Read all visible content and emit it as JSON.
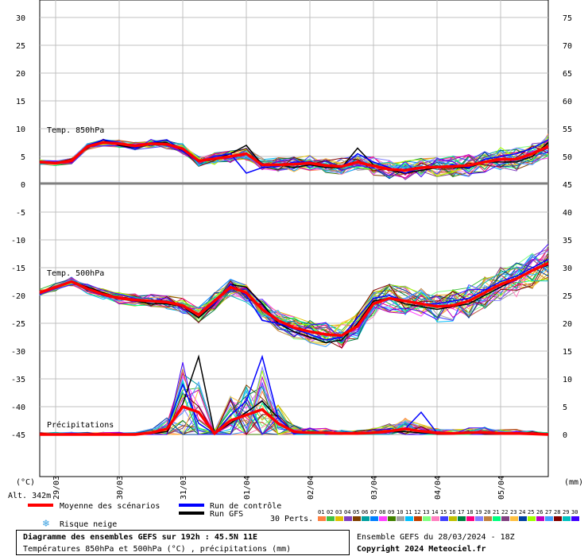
{
  "colors": {
    "mean": "#ff0000",
    "control": "#0000ff",
    "gfs": "#000000",
    "grid": "#c0c0c0",
    "members": [
      "#ff8040",
      "#40c040",
      "#e0c000",
      "#8040c0",
      "#804000",
      "#00a0a0",
      "#0080ff",
      "#ff40ff",
      "#408000",
      "#a0a0a0",
      "#00c0ff",
      "#c04000",
      "#80ff80",
      "#ff80c0",
      "#4040ff",
      "#c0c000",
      "#008040",
      "#ff0080",
      "#8080ff",
      "#c08040",
      "#00ff80",
      "#804080",
      "#ffc040",
      "#0040a0",
      "#a0ff00",
      "#c000c0",
      "#40a0ff",
      "#800000",
      "#00c0c0",
      "#4000ff"
    ]
  },
  "chart_data": {
    "type": "line",
    "title": "Diagramme des ensembles GEFS sur 192h : 45.5N 11E",
    "subtitle": "Températures 850hPa et 500hPa (°C) , précipitations (mm)",
    "run_info": "Ensemble GEFS du 28/03/2024 - 18Z",
    "copyright": "Copyright 2024 Meteociel.fr",
    "altitude": "Alt. 342m",
    "left_axis": {
      "unit": "(°C)",
      "range": [
        -50,
        33
      ],
      "ticks_upper": [
        0,
        5,
        10,
        15,
        20,
        25,
        30
      ],
      "ticks_lower": [
        -45,
        -40,
        -35,
        -30,
        -25,
        -20,
        -15,
        -10,
        -5,
        0
      ]
    },
    "right_axis": {
      "unit": "(mm)",
      "ticks": [
        0,
        5,
        10,
        15,
        20,
        25,
        30,
        35,
        40,
        45,
        50,
        55,
        60,
        65,
        70,
        75
      ]
    },
    "x_range_hours": [
      0,
      192
    ],
    "date_ticks": [
      {
        "label": "29/03",
        "hour": 6
      },
      {
        "label": "30/03",
        "hour": 30
      },
      {
        "label": "31/03",
        "hour": 54
      },
      {
        "label": "01/04",
        "hour": 78
      },
      {
        "label": "02/04",
        "hour": 102
      },
      {
        "label": "03/04",
        "hour": 126
      },
      {
        "label": "04/04",
        "hour": 150
      },
      {
        "label": "05/04",
        "hour": 174
      }
    ],
    "panel_labels": [
      "Temp. 850hPa",
      "Temp. 500hPa",
      "Précipitations"
    ],
    "legend": {
      "mean": "Moyenne des scénarios",
      "control": "Run de contrôle",
      "gfs": "Run GFS",
      "snow": "Risque neige",
      "perts_label": "30 Perts.",
      "perts_numbers": [
        "01",
        "02",
        "03",
        "04",
        "05",
        "06",
        "07",
        "08",
        "09",
        "10",
        "11",
        "12",
        "13",
        "14",
        "15",
        "16",
        "17",
        "18",
        "19",
        "20",
        "21",
        "22",
        "23",
        "24",
        "25",
        "26",
        "27",
        "28",
        "29",
        "30"
      ]
    },
    "series": {
      "t850": {
        "hours": [
          0,
          6,
          12,
          18,
          24,
          30,
          36,
          42,
          48,
          54,
          60,
          66,
          72,
          78,
          84,
          90,
          96,
          102,
          108,
          114,
          120,
          126,
          132,
          138,
          144,
          150,
          156,
          162,
          168,
          174,
          180,
          186,
          192
        ],
        "mean": [
          4.0,
          3.8,
          4.2,
          6.8,
          7.5,
          7.3,
          6.9,
          7.3,
          7.2,
          6.4,
          4.2,
          4.6,
          5.0,
          5.5,
          3.5,
          3.5,
          3.6,
          3.8,
          3.4,
          3.2,
          4.0,
          3.3,
          2.7,
          2.5,
          3.0,
          3.1,
          3.2,
          3.4,
          4.0,
          4.5,
          4.5,
          5.5,
          6.8
        ],
        "control": [
          4.0,
          3.9,
          4.0,
          7.0,
          8.0,
          7.5,
          6.5,
          7.5,
          8.0,
          6.0,
          4.0,
          5.0,
          5.5,
          2.0,
          3.0,
          3.2,
          4.0,
          4.0,
          3.5,
          3.0,
          5.5,
          4.0,
          3.0,
          2.0,
          3.0,
          3.0,
          3.5,
          3.0,
          4.5,
          5.0,
          5.5,
          6.5,
          8.0
        ],
        "gfs": [
          4.0,
          3.7,
          4.2,
          6.8,
          8.0,
          7.0,
          6.5,
          7.5,
          7.5,
          6.0,
          4.2,
          4.5,
          5.5,
          7.0,
          3.5,
          3.5,
          3.0,
          3.5,
          3.0,
          3.0,
          6.5,
          3.5,
          2.5,
          2.0,
          2.5,
          3.0,
          3.0,
          3.0,
          4.0,
          4.0,
          4.0,
          5.0,
          7.5
        ]
      },
      "t500": {
        "hours": [
          0,
          6,
          12,
          18,
          24,
          30,
          36,
          42,
          48,
          54,
          60,
          66,
          72,
          78,
          84,
          90,
          96,
          102,
          108,
          114,
          120,
          126,
          132,
          138,
          144,
          150,
          156,
          162,
          168,
          174,
          180,
          186,
          192
        ],
        "mean": [
          -19.5,
          -18.5,
          -17.5,
          -18.8,
          -19.8,
          -20.5,
          -20.8,
          -21.0,
          -21.2,
          -21.8,
          -23.5,
          -21.0,
          -18.5,
          -19.5,
          -22.5,
          -24.5,
          -25.8,
          -26.5,
          -27.0,
          -27.2,
          -25.5,
          -21.5,
          -20.5,
          -21.0,
          -21.5,
          -22.0,
          -21.8,
          -21.0,
          -19.5,
          -18.0,
          -17.0,
          -15.5,
          -14.2
        ],
        "control": [
          -19.5,
          -18.5,
          -17.5,
          -19.0,
          -20.0,
          -20.5,
          -21.0,
          -21.0,
          -21.0,
          -22.0,
          -23.5,
          -21.5,
          -18.0,
          -20.0,
          -24.5,
          -25.0,
          -26.0,
          -27.0,
          -28.0,
          -27.5,
          -24.0,
          -20.5,
          -20.0,
          -21.0,
          -21.5,
          -21.5,
          -21.0,
          -20.5,
          -19.0,
          -17.5,
          -16.5,
          -15.0,
          -13.5
        ],
        "gfs": [
          -19.5,
          -18.5,
          -17.5,
          -18.5,
          -19.5,
          -20.5,
          -21.0,
          -21.5,
          -21.5,
          -22.0,
          -24.0,
          -21.5,
          -18.0,
          -18.5,
          -21.5,
          -25.0,
          -26.5,
          -27.5,
          -28.5,
          -28.0,
          -25.0,
          -21.0,
          -20.5,
          -21.5,
          -22.0,
          -22.5,
          -22.0,
          -21.5,
          -20.0,
          -18.5,
          -17.0,
          -15.5,
          -14.5
        ]
      },
      "precip_mm": {
        "hours": [
          0,
          6,
          12,
          18,
          24,
          30,
          36,
          42,
          48,
          54,
          60,
          66,
          72,
          78,
          84,
          90,
          96,
          102,
          108,
          114,
          120,
          126,
          132,
          138,
          144,
          150,
          156,
          162,
          168,
          174,
          180,
          186,
          192
        ],
        "mean": [
          0,
          0,
          0,
          0,
          0,
          0,
          0,
          0.3,
          1.0,
          5.0,
          4.0,
          0.2,
          2.5,
          3.5,
          4.5,
          2.0,
          0.5,
          0.3,
          0.3,
          0.2,
          0.2,
          0.3,
          0.6,
          1.0,
          0.6,
          0.3,
          0.2,
          0.3,
          0.4,
          0.2,
          0.2,
          0.1,
          0
        ],
        "control": [
          0,
          0,
          0,
          0,
          0,
          0,
          0,
          0.2,
          1.0,
          9.0,
          2.0,
          0.1,
          3.5,
          6.0,
          14.0,
          3.0,
          0.2,
          0.2,
          0.2,
          0.2,
          0.2,
          0.3,
          0.4,
          1.0,
          4.0,
          0.3,
          0.1,
          0.3,
          0.2,
          0.1,
          0.2,
          0.1,
          0
        ],
        "gfs": [
          0,
          0,
          0,
          0,
          0,
          0,
          0,
          0.2,
          0.5,
          5.5,
          14.0,
          0.2,
          2.0,
          4.0,
          6.0,
          3.0,
          0.3,
          0.3,
          0.2,
          0.2,
          0.2,
          0.2,
          0.5,
          0.5,
          0.3,
          0.2,
          0.2,
          0.3,
          0.2,
          0.2,
          0.1,
          0.1,
          0
        ]
      }
    }
  }
}
